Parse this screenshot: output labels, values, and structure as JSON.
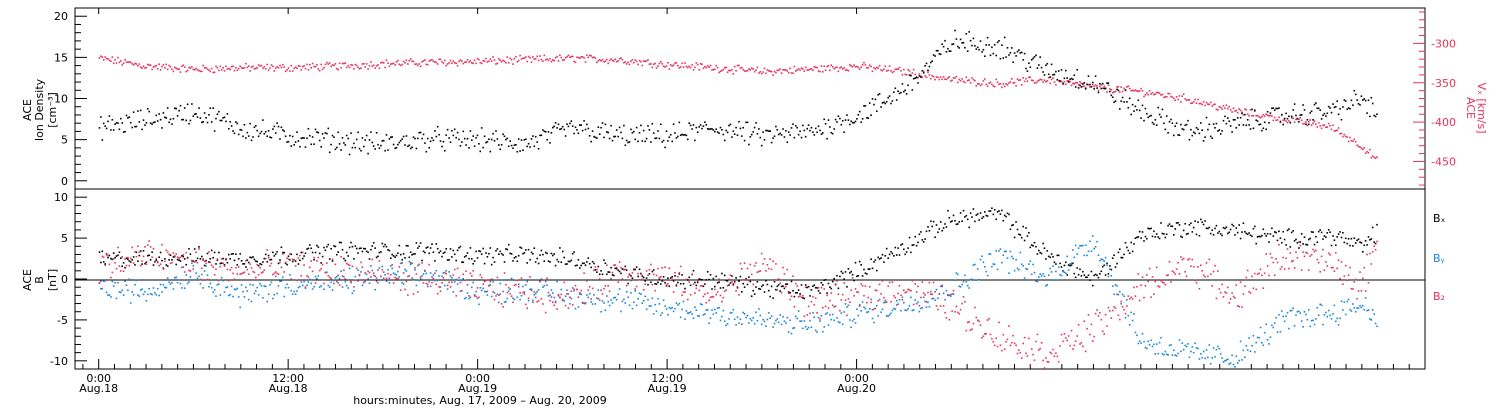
{
  "chart_data": [
    {
      "type": "scatter",
      "panel": "top",
      "ylabel_left": [
        "ACE",
        "Ion Density",
        "[cm⁻³]"
      ],
      "ylabel_right": [
        "ACE",
        "Vₓ [km/s]"
      ],
      "ylim_left": [
        -1,
        21
      ],
      "ylim_right": [
        -485,
        -255
      ],
      "yticks_left": [
        "0",
        "5",
        "10",
        "15",
        "20"
      ],
      "yticks_right": [
        "-300",
        "-350",
        "-400",
        "-450"
      ],
      "series": [
        {
          "name_hidden": "density",
          "color": "#000000",
          "axis": "left",
          "x": [
            0,
            3,
            6,
            9,
            12,
            15,
            18,
            21,
            24,
            27,
            30,
            33,
            36,
            39,
            42,
            45,
            48,
            50,
            52,
            54,
            57,
            60,
            63,
            66,
            69,
            72,
            75,
            78,
            80,
            81
          ],
          "y": [
            6.5,
            7.5,
            8.5,
            6.5,
            5.5,
            5.0,
            4.5,
            5.2,
            5.0,
            4.5,
            6.5,
            5.5,
            5.5,
            6.5,
            5.5,
            6.0,
            8.0,
            10.0,
            13.0,
            17.0,
            16.5,
            13.5,
            12.0,
            8.5,
            6.0,
            7.0,
            8.0,
            8.5,
            10.0,
            8.0
          ]
        },
        {
          "name_hidden": "velocity",
          "color": "#e8335a",
          "axis": "right",
          "x": [
            0,
            3,
            6,
            9,
            12,
            15,
            18,
            21,
            24,
            27,
            30,
            33,
            36,
            39,
            42,
            45,
            48,
            51,
            54,
            57,
            60,
            63,
            66,
            69,
            72,
            75,
            78,
            80,
            81
          ],
          "y": [
            -318,
            -328,
            -332,
            -330,
            -330,
            -328,
            -325,
            -323,
            -322,
            -320,
            -318,
            -320,
            -326,
            -330,
            -335,
            -332,
            -328,
            -335,
            -345,
            -350,
            -345,
            -355,
            -360,
            -370,
            -385,
            -395,
            -405,
            -430,
            -450
          ]
        }
      ]
    },
    {
      "type": "scatter",
      "panel": "bottom",
      "ylabel_left": [
        "ACE",
        "B",
        "[nT]"
      ],
      "ylim": [
        -11,
        11
      ],
      "yticks": [
        "-10",
        "-5",
        "0",
        "5",
        "10"
      ],
      "legend": [
        "Bₓ",
        "Bᵧ",
        "B₂"
      ],
      "series": [
        {
          "name": "Bₓ",
          "color": "#000000",
          "x": [
            0,
            3,
            6,
            9,
            12,
            15,
            18,
            21,
            24,
            27,
            30,
            33,
            36,
            39,
            42,
            45,
            48,
            51,
            54,
            57,
            60,
            63,
            66,
            69,
            72,
            75,
            78,
            80,
            81
          ],
          "y": [
            2.5,
            2.5,
            2.8,
            2.5,
            3.0,
            3.5,
            3.5,
            3.5,
            3.0,
            3.0,
            2.5,
            1.0,
            0.0,
            0.0,
            -1.0,
            -1.5,
            1.0,
            4.0,
            7.5,
            8.0,
            3.0,
            0.0,
            5.5,
            6.5,
            6.0,
            5.0,
            5.5,
            4.0,
            6.0
          ]
        },
        {
          "name": "Bᵧ",
          "color": "#1a86d9",
          "x": [
            0,
            3,
            6,
            9,
            12,
            15,
            18,
            21,
            24,
            27,
            30,
            33,
            36,
            39,
            42,
            45,
            48,
            51,
            54,
            57,
            60,
            63,
            66,
            69,
            72,
            75,
            78,
            80,
            81
          ],
          "y": [
            -1.0,
            -1.5,
            1.0,
            -2.0,
            -0.5,
            -0.5,
            0.5,
            0.5,
            -1.5,
            -1.0,
            -2.0,
            -2.5,
            -3.5,
            -4.0,
            -5.0,
            -5.5,
            -4.0,
            -3.0,
            -1.0,
            3.0,
            0.0,
            5.0,
            -7.5,
            -9.0,
            -9.5,
            -5.0,
            -4.0,
            -3.0,
            -5.0
          ]
        },
        {
          "name": "B₂",
          "color": "#e8335a",
          "x": [
            0,
            3,
            6,
            9,
            12,
            15,
            18,
            21,
            24,
            27,
            30,
            33,
            36,
            39,
            42,
            45,
            48,
            51,
            54,
            57,
            60,
            63,
            66,
            69,
            72,
            75,
            78,
            80,
            81
          ],
          "y": [
            1.5,
            3.0,
            2.0,
            1.0,
            1.5,
            1.0,
            0.5,
            0.0,
            -1.0,
            -1.5,
            -2.0,
            1.0,
            0.0,
            -2.0,
            2.0,
            -3.0,
            -2.0,
            -1.0,
            -3.0,
            -7.0,
            -9.0,
            -6.0,
            -1.0,
            2.0,
            -2.0,
            3.0,
            2.0,
            -1.0,
            6.0
          ]
        }
      ]
    }
  ],
  "x_axis": {
    "range_hours": [
      -1.5,
      84
    ],
    "ticks": [
      {
        "hour": 0,
        "time": "0:00",
        "date": "Aug.18"
      },
      {
        "hour": 12,
        "time": "12:00",
        "date": "Aug.18"
      },
      {
        "hour": 24,
        "time": "0:00",
        "date": "Aug.19"
      },
      {
        "hour": 36,
        "time": "12:00",
        "date": "Aug.19"
      },
      {
        "hour": 48,
        "time": "0:00",
        "date": "Aug.20"
      }
    ],
    "title": "hours:minutes, Aug. 17, 2009 – Aug. 20, 2009"
  }
}
